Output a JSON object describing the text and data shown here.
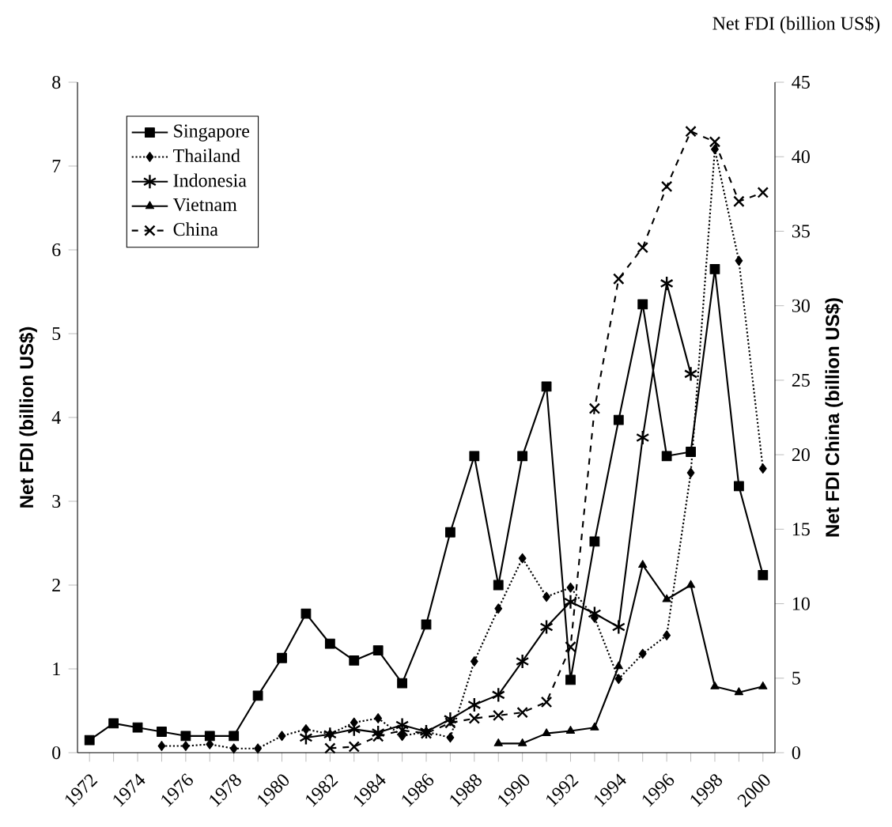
{
  "chart_data": {
    "type": "line",
    "ylabel": "Net FDI (billion US$)",
    "y2label": "Net FDI China (billion US$)",
    "annotations": [
      "Net FDI (billion US$)"
    ],
    "categories": [
      "1972",
      null,
      "1974",
      null,
      "1976",
      null,
      "1978",
      null,
      "1980",
      null,
      "1982",
      null,
      "1984",
      null,
      "1986",
      null,
      "1988",
      null,
      "1990",
      null,
      "1992",
      null,
      "1994",
      null,
      "1996",
      null,
      "1998",
      null,
      "2000"
    ],
    "ylim": [
      0,
      8
    ],
    "yticks": [
      0,
      1,
      2,
      3,
      4,
      5,
      6,
      7,
      8
    ],
    "y2lim": [
      0,
      45
    ],
    "y2ticks": [
      0,
      5,
      10,
      15,
      20,
      25,
      30,
      35,
      40,
      45
    ],
    "legend": "top left",
    "series": [
      {
        "name": "Singapore",
        "color": "#000000",
        "marker": "square",
        "line_style": "solid",
        "values": [
          0.15,
          0.35,
          0.3,
          0.25,
          0.2,
          0.2,
          0.2,
          0.68,
          1.13,
          1.66,
          1.3,
          1.1,
          1.22,
          0.83,
          1.53,
          2.63,
          3.54,
          2.0,
          3.54,
          4.37,
          0.87,
          2.52,
          3.97,
          5.35,
          3.54,
          3.59,
          5.77,
          3.18,
          2.12
        ]
      },
      {
        "name": "Thailand",
        "color": "#000000",
        "marker": "diamond",
        "line_style": "dotted",
        "values": [
          null,
          null,
          null,
          0.08,
          0.08,
          0.1,
          0.05,
          0.05,
          0.2,
          0.28,
          0.22,
          0.36,
          0.41,
          0.2,
          0.25,
          0.18,
          1.09,
          1.72,
          2.32,
          1.86,
          1.97,
          1.61,
          0.88,
          1.18,
          1.4,
          3.34,
          7.2,
          5.87,
          3.39
        ]
      },
      {
        "name": "Indonesia",
        "color": "#000000",
        "marker": "star",
        "line_style": "solid",
        "values": [
          null,
          null,
          null,
          null,
          null,
          null,
          null,
          null,
          null,
          0.18,
          0.22,
          0.28,
          0.24,
          0.33,
          0.25,
          0.4,
          0.57,
          0.69,
          1.09,
          1.5,
          1.8,
          1.66,
          1.5,
          3.76,
          5.6,
          4.52,
          null,
          null,
          null
        ]
      },
      {
        "name": "Vietnam",
        "color": "#000000",
        "marker": "triangle",
        "line_style": "solid",
        "values": [
          null,
          null,
          null,
          null,
          null,
          null,
          null,
          null,
          null,
          null,
          null,
          null,
          null,
          null,
          null,
          null,
          null,
          0.11,
          0.11,
          0.23,
          0.26,
          0.3,
          1.03,
          2.24,
          1.83,
          2.0,
          0.79,
          0.72,
          0.79
        ]
      },
      {
        "name": "China",
        "color": "#000000",
        "marker": "cross",
        "line_style": "dashed",
        "axis": "y2",
        "values": [
          null,
          null,
          null,
          null,
          null,
          null,
          null,
          null,
          null,
          null,
          0.3,
          0.4,
          1.1,
          1.5,
          1.3,
          2.0,
          2.3,
          2.5,
          2.7,
          3.4,
          7.1,
          23.1,
          31.8,
          33.9,
          38.0,
          41.7,
          41.0,
          37.0,
          37.6
        ]
      }
    ]
  }
}
